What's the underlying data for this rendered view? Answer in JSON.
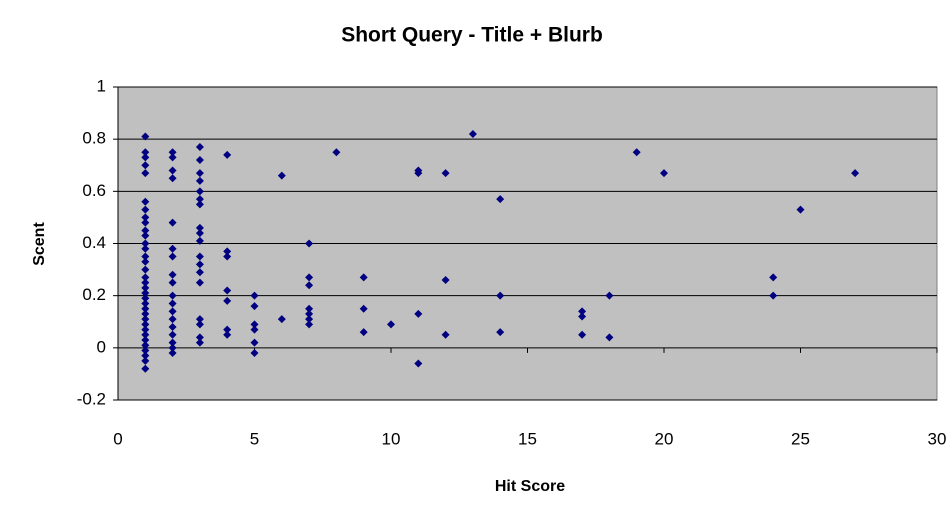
{
  "chart_data": {
    "type": "scatter",
    "title": "Short Query - Title + Blurb",
    "x_label": "Hit Score",
    "y_label": "Scent",
    "color": "#000080",
    "xlim": [
      0,
      30
    ],
    "xticks": [
      0,
      5,
      10,
      15,
      20,
      25,
      30
    ],
    "ylim": [
      -0.2,
      1
    ],
    "yticks": [
      -0.2,
      0,
      0.2,
      0.4,
      0.6,
      0.8,
      1
    ],
    "grid": true,
    "x": [
      1,
      1,
      1,
      1,
      1,
      1,
      1,
      1,
      1,
      1,
      1,
      1,
      1,
      1,
      1,
      1,
      1,
      1,
      1,
      1,
      1,
      1,
      1,
      1,
      1,
      1,
      1,
      1,
      1,
      1,
      1,
      1,
      1,
      1,
      2,
      2,
      2,
      2,
      2,
      2,
      2,
      2,
      2,
      2,
      2,
      2,
      2,
      2,
      2,
      2,
      2,
      2,
      3,
      3,
      3,
      3,
      3,
      3,
      3,
      3,
      3,
      3,
      3,
      3,
      3,
      3,
      3,
      3,
      3,
      3,
      4,
      4,
      4,
      4,
      4,
      4,
      4,
      5,
      5,
      5,
      5,
      5,
      5,
      6,
      6,
      7,
      7,
      7,
      7,
      7,
      7,
      7,
      8,
      9,
      9,
      9,
      10,
      11,
      11,
      11,
      11,
      12,
      12,
      12,
      13,
      14,
      14,
      14,
      17,
      17,
      17,
      18,
      18,
      19,
      20,
      24,
      24,
      25,
      27
    ],
    "values": [
      0.81,
      0.75,
      0.73,
      0.7,
      0.67,
      0.56,
      0.53,
      0.5,
      0.48,
      0.45,
      0.43,
      0.4,
      0.38,
      0.35,
      0.33,
      0.3,
      0.27,
      0.25,
      0.23,
      0.21,
      0.19,
      0.17,
      0.15,
      0.13,
      0.11,
      0.09,
      0.07,
      0.05,
      0.03,
      0.01,
      -0.01,
      -0.03,
      -0.05,
      -0.08,
      0.75,
      0.73,
      0.68,
      0.65,
      0.48,
      0.38,
      0.35,
      0.28,
      0.25,
      0.2,
      0.17,
      0.14,
      0.11,
      0.08,
      0.05,
      0.02,
      0.0,
      -0.02,
      0.77,
      0.72,
      0.67,
      0.64,
      0.6,
      0.57,
      0.55,
      0.46,
      0.44,
      0.41,
      0.35,
      0.32,
      0.29,
      0.25,
      0.11,
      0.09,
      0.04,
      0.02,
      0.74,
      0.37,
      0.35,
      0.22,
      0.18,
      0.07,
      0.05,
      0.2,
      0.16,
      0.09,
      0.07,
      0.02,
      -0.02,
      0.66,
      0.11,
      0.4,
      0.27,
      0.24,
      0.15,
      0.13,
      0.11,
      0.09,
      0.75,
      0.27,
      0.15,
      0.06,
      0.09,
      0.68,
      0.67,
      0.13,
      -0.06,
      0.67,
      0.26,
      0.05,
      0.82,
      0.57,
      0.2,
      0.06,
      0.14,
      0.12,
      0.05,
      0.2,
      0.04,
      0.75,
      0.67,
      0.27,
      0.2,
      0.53,
      0.67
    ]
  }
}
